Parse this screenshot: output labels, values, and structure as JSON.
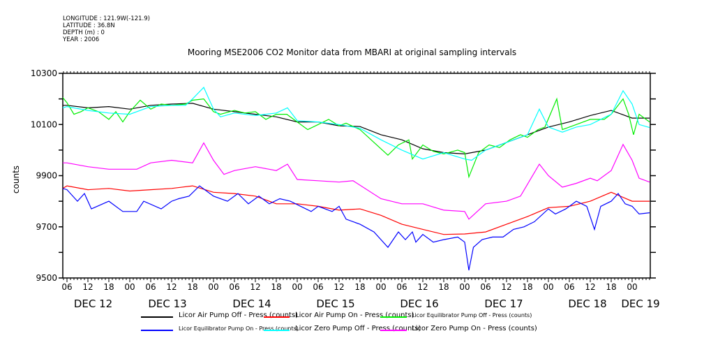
{
  "meta": {
    "longitude": "LONGITUDE : 121.9W(-121.9)",
    "latitude": "LATITUDE : 36.8N",
    "depth": "DEPTH (m) : 0",
    "year": "YEAR : 2006"
  },
  "chart_data": {
    "type": "line",
    "title": "Mooring MSE2006 CO2 Monitor data from MBARI at original sampling intervals",
    "xlabel": "",
    "ylabel": "counts",
    "x_units": "hours since DEC 12 00:00",
    "xlim": [
      4.8,
      173.2
    ],
    "ylim": [
      9500,
      10300
    ],
    "yticks": [
      9500,
      9600,
      9700,
      9800,
      9900,
      10000,
      10100,
      10200,
      10300
    ],
    "ytick_labels": [
      "9500",
      "9700",
      "9900",
      "10100",
      "10300"
    ],
    "ytick_label_values": [
      9500,
      9700,
      9900,
      10100,
      10300
    ],
    "xtick_hours": [
      6,
      12,
      18,
      24,
      30,
      36,
      42,
      48,
      54,
      60,
      66,
      72,
      78,
      84,
      90,
      96,
      102,
      108,
      114,
      120,
      126,
      132,
      138,
      144,
      150,
      156,
      162,
      168
    ],
    "xtick_labels": [
      "06",
      "12",
      "18",
      "00",
      "06",
      "12",
      "18",
      "00",
      "06",
      "12",
      "18",
      "00",
      "06",
      "12",
      "18",
      "00",
      "06",
      "12",
      "18",
      "00",
      "06",
      "12",
      "18",
      "00",
      "06",
      "12",
      "18",
      "00"
    ],
    "date_labels": [
      {
        "label": "DEC 12",
        "hour": 13.5
      },
      {
        "label": "DEC 13",
        "hour": 34.8
      },
      {
        "label": "DEC 14",
        "hour": 59
      },
      {
        "label": "DEC 15",
        "hour": 83
      },
      {
        "label": "DEC 16",
        "hour": 107
      },
      {
        "label": "DEC 17",
        "hour": 131.2
      },
      {
        "label": "DEC 18",
        "hour": 155.2
      },
      {
        "label": "DEC 19",
        "hour": 170.4
      }
    ],
    "grid": false,
    "legend_position": "bottom",
    "series": [
      {
        "name": "Licor Air Pump Off - Press (counts)",
        "color": "#000000",
        "points": [
          [
            4.8,
            10175
          ],
          [
            6,
            10175
          ],
          [
            12,
            10165
          ],
          [
            18,
            10170
          ],
          [
            24,
            10160
          ],
          [
            30,
            10175
          ],
          [
            36,
            10180
          ],
          [
            42,
            10183
          ],
          [
            48,
            10160
          ],
          [
            54,
            10150
          ],
          [
            60,
            10140
          ],
          [
            66,
            10130
          ],
          [
            72,
            10110
          ],
          [
            78,
            10110
          ],
          [
            84,
            10095
          ],
          [
            90,
            10092
          ],
          [
            96,
            10060
          ],
          [
            102,
            10040
          ],
          [
            108,
            10005
          ],
          [
            114,
            9990
          ],
          [
            120,
            9985
          ],
          [
            126,
            10000
          ],
          [
            132,
            10030
          ],
          [
            138,
            10060
          ],
          [
            144,
            10090
          ],
          [
            150,
            10110
          ],
          [
            156,
            10135
          ],
          [
            162,
            10155
          ],
          [
            168,
            10125
          ],
          [
            173,
            10125
          ]
        ]
      },
      {
        "name": "Licor Air Pump On - Press (counts)",
        "color": "#ff0000",
        "points": [
          [
            4.8,
            9850
          ],
          [
            6,
            9860
          ],
          [
            12,
            9845
          ],
          [
            18,
            9850
          ],
          [
            24,
            9840
          ],
          [
            30,
            9845
          ],
          [
            36,
            9850
          ],
          [
            42,
            9860
          ],
          [
            48,
            9835
          ],
          [
            54,
            9830
          ],
          [
            60,
            9820
          ],
          [
            66,
            9790
          ],
          [
            72,
            9790
          ],
          [
            78,
            9780
          ],
          [
            84,
            9765
          ],
          [
            90,
            9770
          ],
          [
            96,
            9745
          ],
          [
            102,
            9710
          ],
          [
            108,
            9690
          ],
          [
            114,
            9670
          ],
          [
            120,
            9672
          ],
          [
            126,
            9680
          ],
          [
            132,
            9710
          ],
          [
            138,
            9740
          ],
          [
            144,
            9775
          ],
          [
            150,
            9780
          ],
          [
            156,
            9800
          ],
          [
            162,
            9835
          ],
          [
            168,
            9800
          ],
          [
            173,
            9800
          ]
        ]
      },
      {
        "name": "Licor Equilibrator Pump Off - Press (counts)",
        "color": "#00ee00",
        "points": [
          [
            4.8,
            10205
          ],
          [
            6,
            10185
          ],
          [
            8,
            10140
          ],
          [
            10,
            10150
          ],
          [
            12,
            10165
          ],
          [
            15,
            10150
          ],
          [
            18,
            10120
          ],
          [
            20,
            10150
          ],
          [
            22,
            10110
          ],
          [
            24,
            10150
          ],
          [
            27,
            10195
          ],
          [
            30,
            10160
          ],
          [
            33,
            10180
          ],
          [
            36,
            10175
          ],
          [
            40,
            10180
          ],
          [
            42,
            10195
          ],
          [
            45.2,
            10200
          ],
          [
            48,
            10150
          ],
          [
            50,
            10140
          ],
          [
            54,
            10155
          ],
          [
            57,
            10145
          ],
          [
            60,
            10150
          ],
          [
            63,
            10120
          ],
          [
            66,
            10140
          ],
          [
            69,
            10140
          ],
          [
            72,
            10110
          ],
          [
            75,
            10080
          ],
          [
            78,
            10100
          ],
          [
            81,
            10120
          ],
          [
            84,
            10095
          ],
          [
            86,
            10105
          ],
          [
            90,
            10080
          ],
          [
            94,
            10030
          ],
          [
            98,
            9980
          ],
          [
            101,
            10020
          ],
          [
            104,
            10040
          ],
          [
            105,
            9965
          ],
          [
            108,
            10020
          ],
          [
            111,
            9995
          ],
          [
            114,
            9985
          ],
          [
            118,
            10000
          ],
          [
            120,
            9990
          ],
          [
            121.2,
            9895
          ],
          [
            124,
            9990
          ],
          [
            127,
            10020
          ],
          [
            130,
            10010
          ],
          [
            133,
            10040
          ],
          [
            136,
            10060
          ],
          [
            138,
            10050
          ],
          [
            141,
            10080
          ],
          [
            143,
            10090
          ],
          [
            146.4,
            10200
          ],
          [
            148,
            10080
          ],
          [
            152,
            10100
          ],
          [
            156,
            10120
          ],
          [
            160,
            10120
          ],
          [
            162,
            10140
          ],
          [
            165.4,
            10200
          ],
          [
            167,
            10140
          ],
          [
            168.4,
            10060
          ],
          [
            170,
            10140
          ],
          [
            173,
            10110
          ]
        ]
      },
      {
        "name": "Licor Equilibrator Pump On - Press (counts)",
        "color": "#0000ff",
        "points": [
          [
            4.8,
            9850
          ],
          [
            6,
            9845
          ],
          [
            9,
            9800
          ],
          [
            11,
            9830
          ],
          [
            13,
            9770
          ],
          [
            18,
            9800
          ],
          [
            22,
            9760
          ],
          [
            26,
            9760
          ],
          [
            28,
            9800
          ],
          [
            33,
            9770
          ],
          [
            36,
            9800
          ],
          [
            38,
            9810
          ],
          [
            41,
            9820
          ],
          [
            44,
            9860
          ],
          [
            46,
            9840
          ],
          [
            48,
            9820
          ],
          [
            52,
            9800
          ],
          [
            55,
            9830
          ],
          [
            58,
            9790
          ],
          [
            61,
            9820
          ],
          [
            64,
            9790
          ],
          [
            67,
            9810
          ],
          [
            70,
            9800
          ],
          [
            73,
            9780
          ],
          [
            76,
            9760
          ],
          [
            78,
            9780
          ],
          [
            82,
            9760
          ],
          [
            84,
            9780
          ],
          [
            86,
            9730
          ],
          [
            90,
            9710
          ],
          [
            94,
            9680
          ],
          [
            98,
            9620
          ],
          [
            101,
            9680
          ],
          [
            103,
            9650
          ],
          [
            105,
            9680
          ],
          [
            106,
            9640
          ],
          [
            108,
            9670
          ],
          [
            111,
            9640
          ],
          [
            114,
            9650
          ],
          [
            118,
            9660
          ],
          [
            120,
            9640
          ],
          [
            121.2,
            9530
          ],
          [
            122.5,
            9620
          ],
          [
            125,
            9650
          ],
          [
            128,
            9660
          ],
          [
            131,
            9660
          ],
          [
            134,
            9690
          ],
          [
            137,
            9700
          ],
          [
            140,
            9720
          ],
          [
            144,
            9770
          ],
          [
            146,
            9750
          ],
          [
            149,
            9770
          ],
          [
            152,
            9800
          ],
          [
            155,
            9780
          ],
          [
            157.2,
            9690
          ],
          [
            159,
            9780
          ],
          [
            162,
            9800
          ],
          [
            164,
            9830
          ],
          [
            166,
            9790
          ],
          [
            168,
            9780
          ],
          [
            170,
            9750
          ],
          [
            173,
            9755
          ]
        ]
      },
      {
        "name": "Licor Zero Pump Off - Press (counts)",
        "color": "#00ffff",
        "points": [
          [
            4.8,
            10165
          ],
          [
            6,
            10170
          ],
          [
            12,
            10155
          ],
          [
            18,
            10145
          ],
          [
            24,
            10140
          ],
          [
            30,
            10170
          ],
          [
            36,
            10175
          ],
          [
            40,
            10175
          ],
          [
            42,
            10200
          ],
          [
            45.2,
            10245
          ],
          [
            48,
            10160
          ],
          [
            50,
            10130
          ],
          [
            54,
            10145
          ],
          [
            60,
            10135
          ],
          [
            66,
            10145
          ],
          [
            69.2,
            10165
          ],
          [
            72,
            10115
          ],
          [
            78,
            10110
          ],
          [
            84,
            10100
          ],
          [
            90,
            10085
          ],
          [
            96,
            10040
          ],
          [
            102,
            10000
          ],
          [
            108,
            9965
          ],
          [
            114,
            9990
          ],
          [
            120,
            9965
          ],
          [
            122,
            9960
          ],
          [
            126,
            10000
          ],
          [
            132,
            10030
          ],
          [
            138,
            10060
          ],
          [
            141.4,
            10160
          ],
          [
            144,
            10090
          ],
          [
            148,
            10070
          ],
          [
            152,
            10090
          ],
          [
            156,
            10100
          ],
          [
            162,
            10140
          ],
          [
            165.4,
            10232
          ],
          [
            168,
            10180
          ],
          [
            170,
            10100
          ],
          [
            173,
            10088
          ]
        ]
      },
      {
        "name": "Licor Zero Pump On - Press (counts)",
        "color": "#ff00ff",
        "points": [
          [
            4.8,
            9950
          ],
          [
            6,
            9950
          ],
          [
            12,
            9935
          ],
          [
            18,
            9925
          ],
          [
            24,
            9925
          ],
          [
            26,
            9925
          ],
          [
            30,
            9950
          ],
          [
            36,
            9960
          ],
          [
            42,
            9950
          ],
          [
            45.2,
            10028
          ],
          [
            48,
            9960
          ],
          [
            51,
            9905
          ],
          [
            54,
            9920
          ],
          [
            60,
            9935
          ],
          [
            66,
            9920
          ],
          [
            69.2,
            9945
          ],
          [
            72,
            9885
          ],
          [
            78,
            9880
          ],
          [
            84,
            9875
          ],
          [
            88,
            9880
          ],
          [
            96,
            9810
          ],
          [
            102,
            9790
          ],
          [
            108,
            9790
          ],
          [
            114,
            9765
          ],
          [
            120,
            9760
          ],
          [
            121.2,
            9730
          ],
          [
            126,
            9790
          ],
          [
            132,
            9800
          ],
          [
            136,
            9820
          ],
          [
            141.4,
            9945
          ],
          [
            144,
            9900
          ],
          [
            148,
            9855
          ],
          [
            152,
            9870
          ],
          [
            156,
            9890
          ],
          [
            158,
            9880
          ],
          [
            162,
            9920
          ],
          [
            165.4,
            10022
          ],
          [
            168,
            9960
          ],
          [
            170,
            9890
          ],
          [
            173,
            9875
          ]
        ]
      }
    ]
  }
}
